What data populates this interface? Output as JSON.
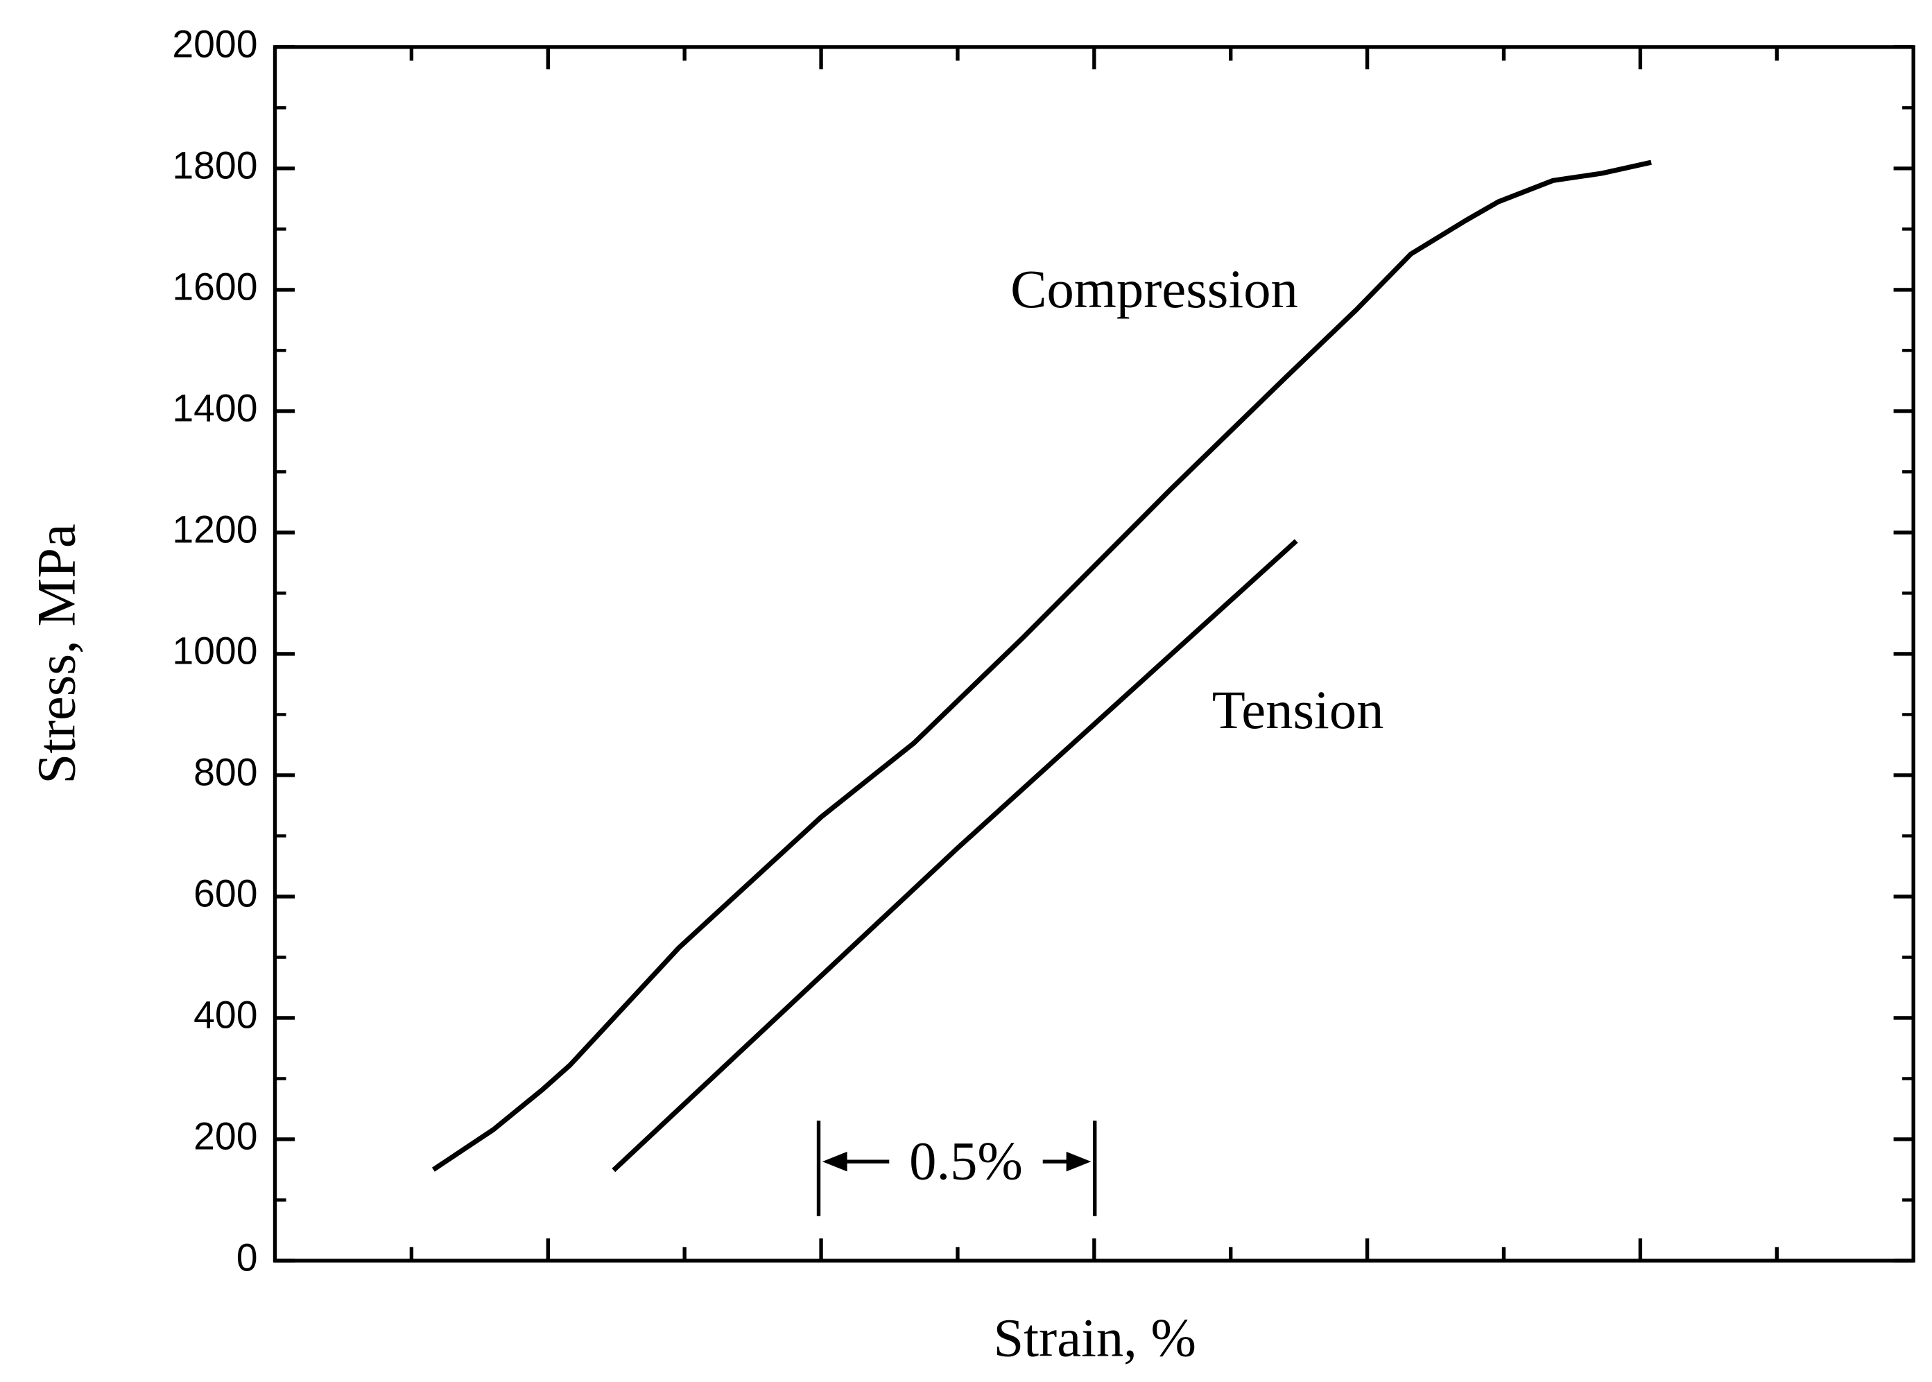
{
  "chart_data": {
    "type": "line",
    "xlabel": "Strain, %",
    "ylabel": "Stress, MPa",
    "annotation": "0.5%",
    "xlim": [
      0,
      3
    ],
    "xticks": [
      0.25,
      0.5,
      0.75,
      1,
      1.25,
      1.5,
      1.75,
      2,
      2.25,
      2.5,
      2.75
    ],
    "ylim": [
      0,
      2000
    ],
    "yticks": [
      0,
      200,
      400,
      600,
      800,
      1000,
      1200,
      1400,
      1600,
      1800,
      2000
    ],
    "series": [
      {
        "name": "Compression",
        "color": "#000000",
        "x": [
          0.29,
          0.4,
          0.49,
          0.54,
          0.74,
          1.0,
          1.17,
          1.37,
          1.64,
          1.85,
          1.98,
          2.08,
          2.18,
          2.24,
          2.34,
          2.43,
          2.52
        ],
        "values": [
          150,
          216,
          282,
          322,
          516,
          731,
          853,
          1027,
          1271,
          1455,
          1567,
          1659,
          1714,
          1745,
          1780,
          1792,
          1810
        ]
      },
      {
        "name": "Tension",
        "color": "#000000",
        "x": [
          0.62,
          1.25,
          1.87
        ],
        "values": [
          149,
          680,
          1186
        ]
      }
    ]
  }
}
